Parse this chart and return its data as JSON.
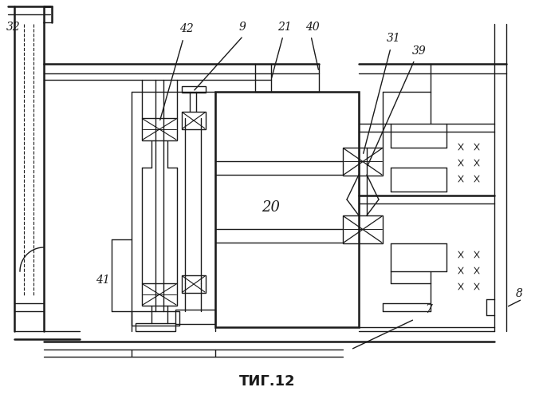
{
  "title": "ΤИГ.12",
  "bg_color": "#ffffff",
  "line_color": "#1a1a1a",
  "lw": 1.0,
  "lw2": 1.8
}
